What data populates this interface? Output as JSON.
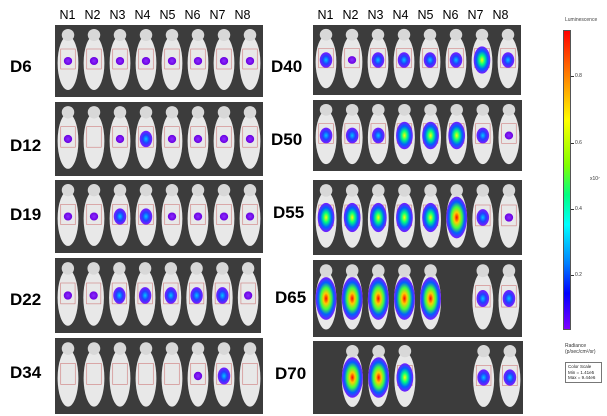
{
  "column_labels": [
    "N1",
    "N2",
    "N3",
    "N4",
    "N5",
    "N6",
    "N7",
    "N8"
  ],
  "left_panels": [
    {
      "day": "D6"
    },
    {
      "day": "D12"
    },
    {
      "day": "D19"
    },
    {
      "day": "D22"
    },
    {
      "day": "D34"
    }
  ],
  "right_panels": [
    {
      "day": "D40"
    },
    {
      "day": "D50"
    },
    {
      "day": "D55"
    },
    {
      "day": "D65"
    },
    {
      "day": "D70"
    }
  ],
  "legend": {
    "title": "Luminescence",
    "ticks": [
      "0.8",
      "0.6",
      "0.4",
      "0.2"
    ],
    "exponent": "x10⁷",
    "radiance_label": "Radiance",
    "radiance_unit": "(p/sec/cm²/sr)",
    "color_scale_title": "Color Scale",
    "min": "Min = 1.41e5",
    "max": "Max = 9.44e6"
  },
  "colors": {
    "panel_bg": "#3c3c3c",
    "mouse_body": "#e6e6e6",
    "signal_low": "#8000ff",
    "signal_mid": "#0050ff",
    "signal_high": "#ff0000"
  }
}
